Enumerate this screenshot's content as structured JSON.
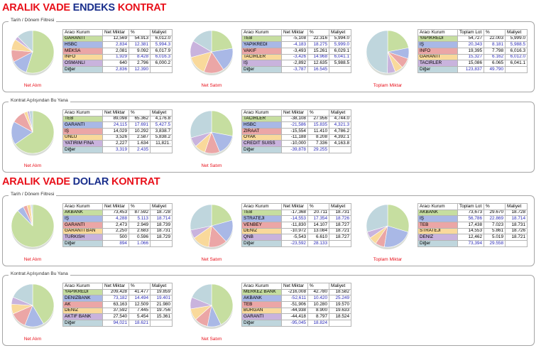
{
  "sections": [
    {
      "title_parts": [
        {
          "text": "ARALIK VADE ",
          "color": "red"
        },
        {
          "text": "ENDEKS",
          "color": "blue"
        },
        {
          "text": " KONTRAT",
          "color": "red"
        }
      ],
      "panels": [
        {
          "label": "Tarih / Dönem Filtresi",
          "groups": [
            {
              "caption": "Net Alım",
              "headers": [
                "Aracı Kurum",
                "Net Miktar",
                "%",
                "Maliyet"
              ],
              "rows": [
                {
                  "name": "GARANTİ",
                  "v1": "12,569",
                  "v2": "54.913",
                  "v3": "6,012.0",
                  "color": "#c6dea0"
                },
                {
                  "name": "HSBC",
                  "v1": "2,834",
                  "v2": "12.381",
                  "v3": "5,994.3",
                  "color": "#a9b8e6"
                },
                {
                  "name": "MEKSA",
                  "v1": "2,081",
                  "v2": "9.092",
                  "v3": "6,017.9",
                  "color": "#eba6a6"
                },
                {
                  "name": "İNFO",
                  "v1": "1,929",
                  "v2": "8.428",
                  "v3": "6,016.3",
                  "color": "#f9d99b"
                },
                {
                  "name": "OSMANLI",
                  "v1": "640",
                  "v2": "2.796",
                  "v3": "6,000.2",
                  "color": "#c9b3dd"
                }
              ],
              "diger": {
                "name": "Diğer",
                "v1": "2,836",
                "v2": "12.390",
                "v3": "",
                "color": "#bfd6dd"
              }
            },
            {
              "caption": "Net Satım",
              "headers": [
                "Aracı Kurum",
                "Net Miktar",
                "%",
                "Maliyet"
              ],
              "rows": [
                {
                  "name": "TEB",
                  "v1": "-5,108",
                  "v2": "22.316",
                  "v3": "5,994.0",
                  "color": "#c6dea0"
                },
                {
                  "name": "YAPIKREDİ",
                  "v1": "-4,183",
                  "v2": "18.275",
                  "v3": "5,999.0",
                  "color": "#a9b8e6"
                },
                {
                  "name": "VAKIF",
                  "v1": "-3,493",
                  "v2": "15.261",
                  "v3": "6,029.1",
                  "color": "#eba6a6"
                },
                {
                  "name": "TACİRLER",
                  "v1": "-3,426",
                  "v2": "14.968",
                  "v3": "6,041.1",
                  "color": "#f9d99b"
                },
                {
                  "name": "IŞ",
                  "v1": "-2,892",
                  "v2": "12.635",
                  "v3": "5,988.5",
                  "color": "#c9b3dd"
                }
              ],
              "diger": {
                "name": "Diğer",
                "v1": "-3,787",
                "v2": "16.545",
                "v3": "",
                "color": "#bfd6dd"
              }
            },
            {
              "caption": "Toplam Miktar",
              "headers": [
                "Aracı Kurum",
                "Toplam Lot",
                "%",
                "Maliyet"
              ],
              "rows": [
                {
                  "name": "YAPIKREDİ",
                  "v1": "54,727",
                  "v2": "22.003",
                  "v3": "5,999.0",
                  "color": "#c6dea0"
                },
                {
                  "name": "IŞ",
                  "v1": "20,343",
                  "v2": "8.181",
                  "v3": "5,988.5",
                  "color": "#a9b8e6"
                },
                {
                  "name": "İNFO",
                  "v1": "19,395",
                  "v2": "7.798",
                  "v3": "6,016.3",
                  "color": "#eba6a6"
                },
                {
                  "name": "GARANTİ",
                  "v1": "15,327",
                  "v2": "6.162",
                  "v3": "6,012.0",
                  "color": "#f9d99b"
                },
                {
                  "name": "TACİRLER",
                  "v1": "15,086",
                  "v2": "6.065",
                  "v3": "6,041.1",
                  "color": "#c9b3dd"
                }
              ],
              "diger": {
                "name": "Diğer",
                "v1": "123,837",
                "v2": "49.790",
                "v3": "",
                "color": "#bfd6dd"
              }
            }
          ]
        },
        {
          "label": "Kontrat Açılışından Bu Yana",
          "groups": [
            {
              "caption": "Net Alım",
              "headers": [
                "Aracı Kurum",
                "Net Miktar",
                "%",
                "Maliyet"
              ],
              "rows": [
                {
                  "name": "TEB",
                  "v1": "89,098",
                  "v2": "65.362",
                  "v3": "4,176.8",
                  "color": "#c6dea0"
                },
                {
                  "name": "GARANTİ",
                  "v1": "24,115",
                  "v2": "17.691",
                  "v3": "5,427.5",
                  "color": "#a9b8e6"
                },
                {
                  "name": "IŞ",
                  "v1": "14,029",
                  "v2": "10.292",
                  "v3": "3,838.7",
                  "color": "#eba6a6"
                },
                {
                  "name": "ÜNLÜ",
                  "v1": "3,526",
                  "v2": "2.587",
                  "v3": "5,838.2",
                  "color": "#f9d99b"
                },
                {
                  "name": "YATIRIM FİNA",
                  "v1": "2,227",
                  "v2": "1.634",
                  "v3": "11,821.",
                  "color": "#c9b3dd"
                }
              ],
              "diger": {
                "name": "Diğer",
                "v1": "3,319",
                "v2": "2.435",
                "v3": "",
                "color": "#bfd6dd"
              }
            },
            {
              "caption": "Net Satım",
              "headers": [
                "Aracı Kurum",
                "Net Miktar",
                "%",
                "Maliyet"
              ],
              "rows": [
                {
                  "name": "TACİRLER",
                  "v1": "-38,108",
                  "v2": "27.956",
                  "v3": "4,744.0",
                  "color": "#c6dea0"
                },
                {
                  "name": "HSBC",
                  "v1": "-21,586",
                  "v2": "15.835",
                  "v3": "4,321.3",
                  "color": "#a9b8e6"
                },
                {
                  "name": "ZİRAAT",
                  "v1": "-15,554",
                  "v2": "11.410",
                  "v3": "4,786.2",
                  "color": "#eba6a6"
                },
                {
                  "name": "OYAK",
                  "v1": "-11,188",
                  "v2": "8.208",
                  "v3": "4,392.1",
                  "color": "#f9d99b"
                },
                {
                  "name": "CREDİT SUİSS",
                  "v1": "-10,000",
                  "v2": "7.336",
                  "v3": "4,163.8",
                  "color": "#c9b3dd"
                }
              ],
              "diger": {
                "name": "Diğer",
                "v1": "-39,878",
                "v2": "29.255",
                "v3": "",
                "color": "#bfd6dd"
              }
            }
          ]
        }
      ]
    },
    {
      "title_parts": [
        {
          "text": "ARALIK VADE ",
          "color": "red"
        },
        {
          "text": "DOLAR",
          "color": "blue"
        },
        {
          "text": " KONTRAT",
          "color": "red"
        }
      ],
      "panels": [
        {
          "label": "Tarih / Dönem Filtresi",
          "groups": [
            {
              "caption": "Net Alım",
              "headers": [
                "Aracı Kurum",
                "Net Miktar",
                "%",
                "Maliyet"
              ],
              "rows": [
                {
                  "name": "AKBANK",
                  "v1": "73,453",
                  "v2": "87.592",
                  "v3": "18.728",
                  "color": "#c6dea0"
                },
                {
                  "name": "IŞ",
                  "v1": "4,288",
                  "v2": "5.113",
                  "v3": "18.714",
                  "color": "#a9b8e6"
                },
                {
                  "name": "GARANTİ",
                  "v1": "2,473",
                  "v2": "2.949",
                  "v3": "18.739",
                  "color": "#eba6a6"
                },
                {
                  "name": "GARANTI BAN",
                  "v1": "2,250",
                  "v2": "2.683",
                  "v3": "18.731",
                  "color": "#f9d99b"
                },
                {
                  "name": "TURKISH",
                  "v1": "500",
                  "v2": "0.596",
                  "v3": "18.729",
                  "color": "#c9b3dd"
                }
              ],
              "diger": {
                "name": "Diğer",
                "v1": "894",
                "v2": "1.066",
                "v3": "",
                "color": "#bfd6dd"
              }
            },
            {
              "caption": "Net Satım",
              "headers": [
                "Aracı Kurum",
                "Net Miktar",
                "%",
                "Maliyet"
              ],
              "rows": [
                {
                  "name": "TEB",
                  "v1": "-17,368",
                  "v2": "20.711",
                  "v3": "18.731",
                  "color": "#c6dea0"
                },
                {
                  "name": "STRATEJİ",
                  "v1": "-14,553",
                  "v2": "17.354",
                  "v3": "18.726",
                  "color": "#a9b8e6"
                },
                {
                  "name": "VENBEY",
                  "v1": "-11,830",
                  "v2": "14.107",
                  "v3": "18.727",
                  "color": "#eba6a6"
                },
                {
                  "name": "DENİZ",
                  "v1": "-10,972",
                  "v2": "13.084",
                  "v3": "18.721",
                  "color": "#f9d99b"
                },
                {
                  "name": "QNB",
                  "v1": "-5,543",
                  "v2": "6.610",
                  "v3": "18.727",
                  "color": "#c9b3dd"
                }
              ],
              "diger": {
                "name": "Diğer",
                "v1": "-23,592",
                "v2": "28.133",
                "v3": "",
                "color": "#bfd6dd"
              }
            },
            {
              "caption": "Toplam Miktar",
              "headers": [
                "Aracı Kurum",
                "Toplam Lot",
                "%",
                "Maliyet"
              ],
              "rows": [
                {
                  "name": "AKBANK",
                  "v1": "73,673",
                  "v2": "29.670",
                  "v3": "18.728",
                  "color": "#c6dea0"
                },
                {
                  "name": "IŞ",
                  "v1": "56,786",
                  "v2": "22.869",
                  "v3": "18.714",
                  "color": "#a9b8e6"
                },
                {
                  "name": "TEB",
                  "v1": "17,438",
                  "v2": "7.023",
                  "v3": "18.731",
                  "color": "#eba6a6"
                },
                {
                  "name": "STRATEJİ",
                  "v1": "14,553",
                  "v2": "5.861",
                  "v3": "18.726",
                  "color": "#f9d99b"
                },
                {
                  "name": "DENİZ",
                  "v1": "12,462",
                  "v2": "5.019",
                  "v3": "18.721",
                  "color": "#c9b3dd"
                }
              ],
              "diger": {
                "name": "Diğer",
                "v1": "73,394",
                "v2": "29.558",
                "v3": "",
                "color": "#bfd6dd"
              }
            }
          ]
        },
        {
          "label": "Kontrat Açılışından Bu Yana",
          "groups": [
            {
              "caption": "Net Alım",
              "headers": [
                "Aracı Kurum",
                "Net Miktar",
                "%",
                "Maliyet"
              ],
              "rows": [
                {
                  "name": "YAPIKREDİ",
                  "v1": "209,428",
                  "v2": "41.477",
                  "v3": "19.859",
                  "color": "#c6dea0"
                },
                {
                  "name": "DENİZBANK",
                  "v1": "73,182",
                  "v2": "14.494",
                  "v3": "19.401",
                  "color": "#a9b8e6"
                },
                {
                  "name": "AK",
                  "v1": "63,163",
                  "v2": "12.509",
                  "v3": "21.980",
                  "color": "#eba6a6"
                },
                {
                  "name": "DENİZ",
                  "v1": "37,592",
                  "v2": "7.445",
                  "v3": "19.756",
                  "color": "#f9d99b"
                },
                {
                  "name": "AKTIF BANK",
                  "v1": "27,540",
                  "v2": "5.454",
                  "v3": "15.361",
                  "color": "#c9b3dd"
                }
              ],
              "diger": {
                "name": "Diğer",
                "v1": "94,021",
                "v2": "18.621",
                "v3": "",
                "color": "#bfd6dd"
              }
            },
            {
              "caption": "Net Satım",
              "headers": [
                "Aracı Kurum",
                "Net Miktar",
                "%",
                "Maliyet"
              ],
              "rows": [
                {
                  "name": "MERKEZ BANK",
                  "v1": "-216,008",
                  "v2": "42.780",
                  "v3": "18.582",
                  "color": "#c6dea0"
                },
                {
                  "name": "AKBANK",
                  "v1": "-52,611",
                  "v2": "10.420",
                  "v3": "25.249",
                  "color": "#a9b8e6"
                },
                {
                  "name": "TEB",
                  "v1": "-51,906",
                  "v2": "10.280",
                  "v3": "19.570",
                  "color": "#eba6a6"
                },
                {
                  "name": "BURGAN",
                  "v1": "-44,938",
                  "v2": "8.900",
                  "v3": "19.633",
                  "color": "#f9d99b"
                },
                {
                  "name": "GARANTİ",
                  "v1": "-44,418",
                  "v2": "8.797",
                  "v3": "18.524",
                  "color": "#c9b3dd"
                }
              ],
              "diger": {
                "name": "Diğer",
                "v1": "-95,045",
                "v2": "18.824",
                "v3": "",
                "color": "#bfd6dd"
              }
            }
          ]
        }
      ]
    }
  ]
}
